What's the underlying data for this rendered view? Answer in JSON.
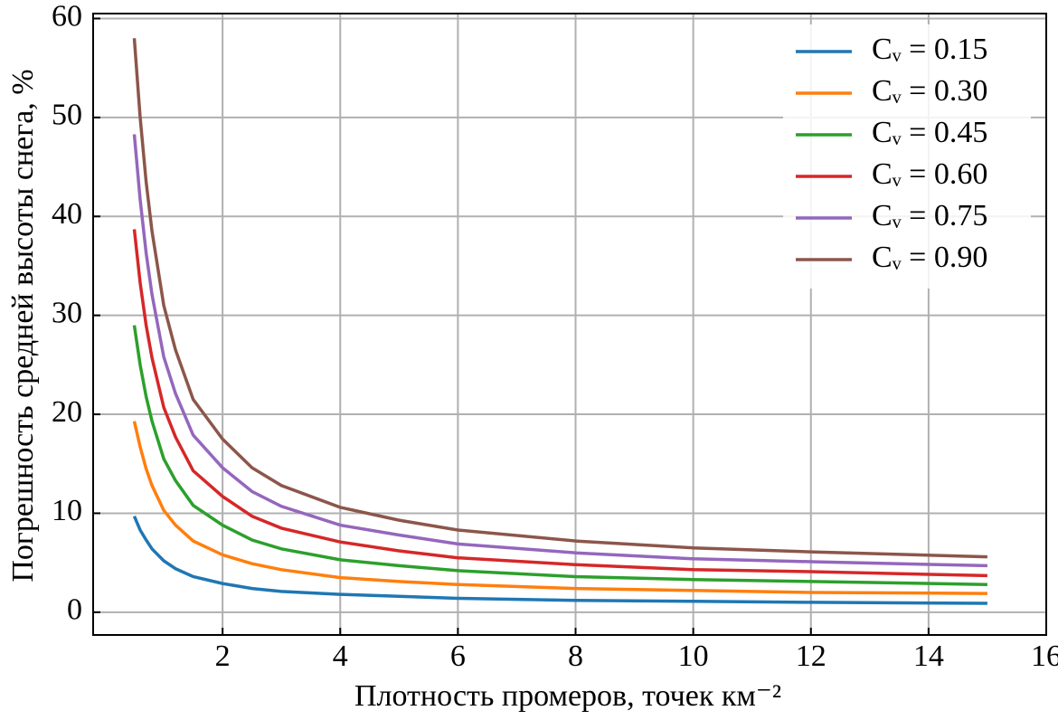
{
  "chart_data": {
    "type": "line",
    "xlabel": "Плотность промеров, точек км⁻²",
    "ylabel": "Погрешность средней высоты снега, %",
    "x": [
      0.5,
      0.6,
      0.7,
      0.8,
      1,
      1.2,
      1.5,
      2,
      2.5,
      3,
      4,
      5,
      6,
      8,
      10,
      12,
      15
    ],
    "series": [
      {
        "name": "Cᵥ = 0.15",
        "color": "#1f77b4",
        "values": [
          9.7,
          8.3,
          7.3,
          6.4,
          5.2,
          4.4,
          3.6,
          2.9,
          2.4,
          2.1,
          1.8,
          1.6,
          1.4,
          1.2,
          1.1,
          1.0,
          0.9
        ]
      },
      {
        "name": "Cᵥ = 0.30",
        "color": "#ff7f0e",
        "values": [
          19.3,
          16.7,
          14.5,
          12.8,
          10.3,
          8.8,
          7.2,
          5.8,
          4.9,
          4.3,
          3.5,
          3.1,
          2.8,
          2.4,
          2.2,
          2.0,
          1.9
        ]
      },
      {
        "name": "Cᵥ = 0.45",
        "color": "#2ca02c",
        "values": [
          29,
          25,
          21.8,
          19.3,
          15.5,
          13.3,
          10.8,
          8.8,
          7.3,
          6.4,
          5.3,
          4.7,
          4.2,
          3.6,
          3.3,
          3.1,
          2.8
        ]
      },
      {
        "name": "Cᵥ = 0.60",
        "color": "#d62728",
        "values": [
          38.7,
          33.3,
          29,
          25.7,
          20.7,
          17.7,
          14.3,
          11.7,
          9.7,
          8.5,
          7.1,
          6.2,
          5.5,
          4.8,
          4.3,
          4.1,
          3.7
        ]
      },
      {
        "name": "Cᵥ = 0.75",
        "color": "#9467bd",
        "values": [
          48.3,
          41.7,
          36.3,
          32.1,
          25.8,
          22.1,
          17.9,
          14.6,
          12.2,
          10.7,
          8.8,
          7.8,
          6.9,
          6,
          5.4,
          5.1,
          4.7
        ]
      },
      {
        "name": "Cᵥ = 0.90",
        "color": "#8c564b",
        "values": [
          58,
          50,
          43.5,
          38.5,
          31,
          26.5,
          21.5,
          17.5,
          14.6,
          12.8,
          10.6,
          9.3,
          8.3,
          7.2,
          6.5,
          6.1,
          5.6
        ]
      }
    ],
    "xlim": [
      -0.2,
      16
    ],
    "xticks": [
      2,
      4,
      6,
      8,
      10,
      12,
      14,
      16
    ],
    "ylim": [
      -2.3,
      60.5
    ],
    "yticks": [
      0,
      10,
      20,
      30,
      40,
      50,
      60
    ],
    "grid": true,
    "legend": "upper right"
  }
}
